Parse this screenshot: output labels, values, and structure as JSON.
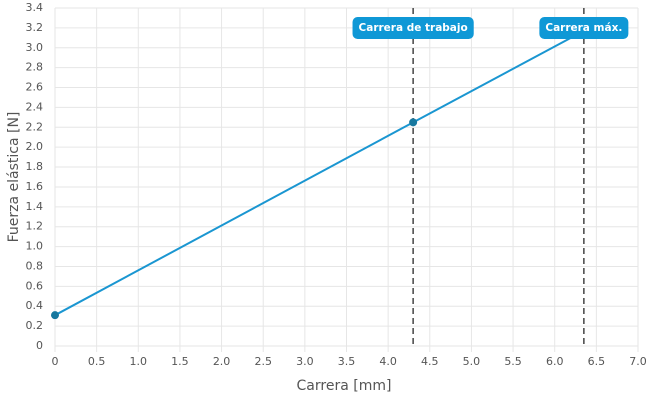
{
  "chart_data": {
    "type": "line",
    "x_label": "Carrera [mm]",
    "y_label": "Fuerza elástica [N]",
    "series": [
      {
        "color": "#1a96d1",
        "marker_color": "#17789f",
        "x": [
          0,
          4.3,
          6.35
        ],
        "values": [
          0.31,
          2.25,
          3.17
        ],
        "markers": [
          true,
          true,
          false
        ]
      }
    ],
    "annotations": [
      {
        "x": 4.3,
        "label": "Carrera de trabajo"
      },
      {
        "x": 6.35,
        "label": "Carrera máx."
      }
    ],
    "annotation_color": "#0f98d6",
    "xlim": [
      0,
      7
    ],
    "ylim": [
      0,
      3.4
    ],
    "grid": true,
    "xticks": [
      0,
      0.5,
      {
        "value": 1,
        "label": "1.0"
      },
      1.5,
      {
        "value": 2,
        "label": "2.0"
      },
      2.5,
      {
        "value": 3,
        "label": "3.0"
      },
      3.5,
      {
        "value": 4,
        "label": "4.0"
      },
      4.5,
      {
        "value": 5,
        "label": "5.0"
      },
      5.5,
      {
        "value": 6,
        "label": "6.0"
      },
      6.5,
      {
        "value": 7,
        "label": "7.0"
      }
    ],
    "yticks": [
      0,
      0.2,
      0.4,
      0.6,
      0.8,
      {
        "value": 1,
        "label": "1.0"
      },
      1.2,
      1.4,
      1.6,
      1.8,
      {
        "value": 2,
        "label": "2.0"
      },
      2.2,
      2.4,
      2.6,
      2.8,
      {
        "value": 3,
        "label": "3.0"
      },
      3.2,
      3.4
    ]
  }
}
